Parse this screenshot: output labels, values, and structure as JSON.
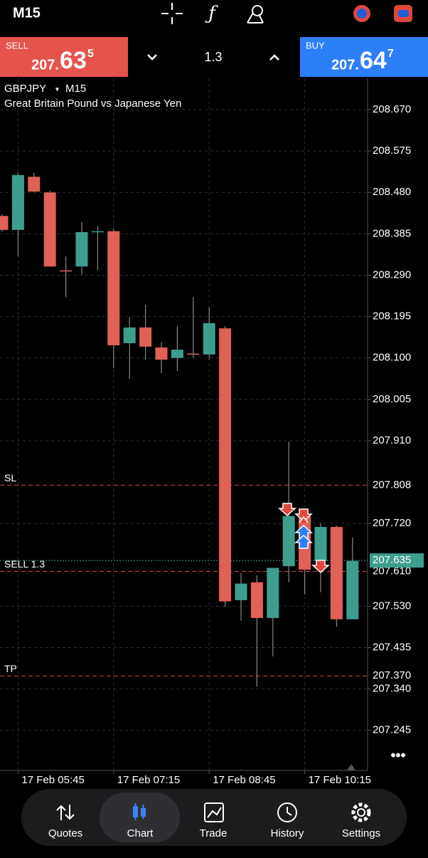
{
  "toolbar": {
    "timeframe": "M15"
  },
  "trade_bar": {
    "sell": {
      "label": "SELL",
      "price_prefix": "207.",
      "price_big": "63",
      "price_small": "5"
    },
    "volume": "1.3",
    "buy": {
      "label": "BUY",
      "price_prefix": "207.",
      "price_big": "64",
      "price_small": "7"
    }
  },
  "chart_data": {
    "type": "candlestick",
    "title": "GBPJPY",
    "period": "M15",
    "subtitle": "Great Britain Pound vs Japanese Yen",
    "up_color": "#3e9e8e",
    "down_color": "#e0605a",
    "x": [
      null,
      "17 Feb 05:45",
      null,
      null,
      null,
      null,
      null,
      "17 Feb 07:15",
      null,
      null,
      null,
      null,
      null,
      "17 Feb 08:45",
      null,
      null,
      null,
      null,
      null,
      "17 Feb 10:15",
      null,
      null,
      null
    ],
    "open": [
      208.426,
      208.394,
      208.516,
      208.48,
      208.301,
      208.31,
      208.39,
      208.391,
      208.134,
      208.17,
      208.124,
      208.1,
      208.11,
      208.108,
      208.168,
      207.544,
      207.585,
      207.503,
      207.622,
      207.737,
      207.634,
      207.712,
      207.5
    ],
    "high": [
      208.43,
      208.525,
      208.525,
      208.484,
      208.333,
      208.412,
      208.402,
      208.396,
      208.194,
      208.222,
      208.137,
      208.173,
      208.239,
      208.216,
      208.173,
      207.606,
      207.601,
      207.618,
      207.908,
      207.753,
      207.721,
      207.715,
      207.688
    ],
    "low": [
      208.39,
      208.333,
      208.48,
      208.31,
      208.24,
      208.292,
      208.301,
      208.077,
      208.052,
      208.096,
      208.065,
      208.07,
      208.1,
      208.096,
      207.529,
      207.497,
      207.345,
      207.415,
      207.585,
      207.557,
      207.562,
      207.483,
      207.5
    ],
    "close": [
      208.394,
      208.52,
      208.482,
      208.31,
      208.3,
      208.389,
      208.391,
      208.129,
      208.17,
      208.126,
      208.096,
      208.119,
      208.109,
      208.18,
      207.541,
      207.582,
      207.503,
      207.618,
      207.737,
      207.614,
      207.712,
      207.5,
      207.634
    ],
    "ylim": [
      207.153,
      208.742
    ],
    "yticks": [
      {
        "value": 208.67,
        "label": "208.670"
      },
      208.575,
      {
        "value": 208.48,
        "label": "208.480"
      },
      208.385,
      {
        "value": 208.29,
        "label": "208.290"
      },
      208.195,
      {
        "value": 208.1,
        "label": "208.100"
      },
      208.005,
      {
        "value": 207.91,
        "label": "207.910"
      },
      {
        "value": 207.72,
        "label": "207.720"
      },
      {
        "value": 207.53,
        "label": "207.530"
      },
      207.435,
      {
        "value": 207.34,
        "label": "207.340"
      },
      207.245
    ],
    "grid": true,
    "levels": [
      {
        "name": "SL",
        "value": 207.808,
        "color": "#d9463f"
      },
      {
        "name": "SELL 1.3",
        "value": 207.61,
        "label": "207.610",
        "color": "#d9463f"
      },
      {
        "name": "TP",
        "value": 207.37,
        "label": "207.370",
        "color": "#d9463f"
      },
      {
        "value": 207.635,
        "color": "#3e9e8e",
        "box": true
      }
    ]
  },
  "nav": {
    "items": [
      "Quotes",
      "Chart",
      "Trade",
      "History",
      "Settings"
    ]
  }
}
